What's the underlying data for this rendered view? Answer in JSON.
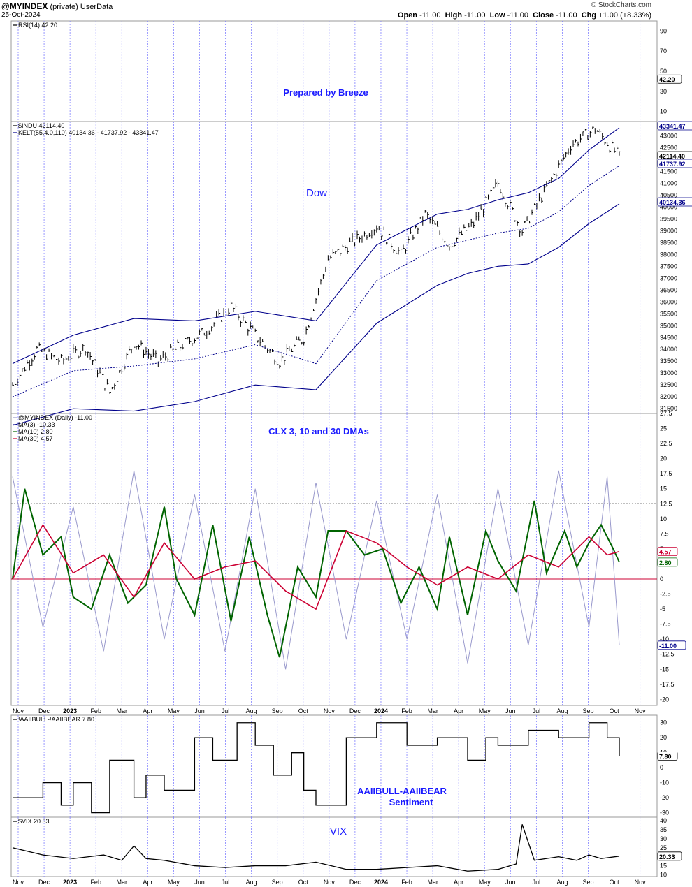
{
  "header": {
    "symbol": "@MYINDEX",
    "owner": "(private)",
    "source": "UserData",
    "date": "25-Oct-2024",
    "open_label": "Open",
    "open": "-11.00",
    "high_label": "High",
    "high": "-11.00",
    "low_label": "Low",
    "low": "-11.00",
    "close_label": "Close",
    "close": "-11.00",
    "chg_label": "Chg",
    "chg": "+1.00 (+8.33%)",
    "watermark": "© StockCharts.com"
  },
  "x_axis": {
    "months": [
      "Nov",
      "Dec",
      "2023",
      "Feb",
      "Mar",
      "Apr",
      "May",
      "Jun",
      "Jul",
      "Aug",
      "Sep",
      "Oct",
      "Nov",
      "Dec",
      "2024",
      "Feb",
      "Mar",
      "Apr",
      "May",
      "Jun",
      "Jul",
      "Aug",
      "Sep",
      "Oct",
      "Nov",
      "Dec"
    ],
    "bold_months": [
      "2023",
      "2024"
    ]
  },
  "chart_data": [
    {
      "type": "line",
      "panel": "rsi",
      "legend": [
        "RSI(14) 42.20"
      ],
      "y_ticks": [
        10,
        30,
        42.2,
        50,
        70,
        90
      ],
      "last_value_label": "42.20",
      "annotation": "Prepared by Breeze"
    },
    {
      "type": "ohlc",
      "panel": "dow",
      "legend": [
        "$INDU 42114.40",
        "KELT(55,4.0,110) 40134.36 - 41737.92 - 43341.47"
      ],
      "ylim": [
        31300,
        43600
      ],
      "y_ticks": [
        31500,
        32000,
        32500,
        33000,
        33500,
        34000,
        34500,
        35000,
        35500,
        36000,
        36500,
        37000,
        37500,
        38000,
        38500,
        39000,
        39500,
        40000,
        40500,
        41000,
        41500,
        42000,
        42500,
        43000
      ],
      "last_labels": [
        "43341.47",
        "42114.40",
        "41737.92",
        "40134.36"
      ],
      "annotation": "Dow",
      "series": [
        {
          "name": "$INDU",
          "x": [
            0,
            0.04,
            0.08,
            0.12,
            0.16,
            0.2,
            0.24,
            0.28,
            0.32,
            0.36,
            0.4,
            0.44,
            0.48,
            0.52,
            0.56,
            0.6,
            0.64,
            0.68,
            0.72,
            0.76,
            0.8,
            0.84,
            0.88,
            0.92,
            0.96,
            1.0
          ],
          "values": [
            32500,
            34000,
            33500,
            34100,
            32200,
            34300,
            33500,
            34200,
            34800,
            35800,
            34600,
            33500,
            34500,
            37800,
            38500,
            39200,
            38000,
            39700,
            38400,
            39300,
            41000,
            39000,
            40800,
            42600,
            43300,
            42114
          ]
        },
        {
          "name": "KELT upper",
          "x": [
            0,
            0.1,
            0.2,
            0.3,
            0.4,
            0.5,
            0.6,
            0.7,
            0.75,
            0.8,
            0.85,
            0.9,
            0.95,
            1.0
          ],
          "values": [
            33400,
            34600,
            35300,
            35200,
            35600,
            35200,
            38400,
            39700,
            39900,
            40300,
            40600,
            41200,
            42400,
            43341
          ]
        },
        {
          "name": "KELT middle",
          "x": [
            0,
            0.1,
            0.2,
            0.3,
            0.4,
            0.5,
            0.6,
            0.7,
            0.75,
            0.8,
            0.85,
            0.9,
            0.95,
            1.0
          ],
          "values": [
            32000,
            33100,
            33300,
            33600,
            34200,
            33400,
            36900,
            38300,
            38600,
            38900,
            39100,
            39800,
            40900,
            41738
          ]
        },
        {
          "name": "KELT lower",
          "x": [
            0,
            0.1,
            0.2,
            0.3,
            0.4,
            0.5,
            0.6,
            0.7,
            0.75,
            0.8,
            0.85,
            0.9,
            0.95,
            1.0
          ],
          "values": [
            30800,
            31500,
            31400,
            31800,
            32500,
            32300,
            35100,
            36700,
            37200,
            37500,
            37600,
            38300,
            39300,
            40134
          ]
        }
      ]
    },
    {
      "type": "line",
      "panel": "clx",
      "legend": [
        "@MYINDEX (Daily) -11.00",
        "MA(3) -10.33",
        "MA(10) 2.80",
        "MA(30) 4.57"
      ],
      "ylim": [
        -21,
        27.5
      ],
      "y_ticks": [
        -20,
        -17.5,
        -15,
        -12.5,
        -10,
        -7.5,
        -5,
        -2.5,
        0,
        2.5,
        5,
        7.5,
        10,
        12.5,
        15,
        17.5,
        20,
        22.5,
        25,
        27.5
      ],
      "reference_lines": [
        12.5,
        0
      ],
      "last_labels": [
        "4.57",
        "2.80",
        "-11.00"
      ],
      "annotation": "CLX 3, 10 and 30 DMAs",
      "series": [
        {
          "name": "MA(10)",
          "x": [
            0,
            0.02,
            0.05,
            0.08,
            0.1,
            0.13,
            0.16,
            0.19,
            0.22,
            0.25,
            0.27,
            0.3,
            0.33,
            0.36,
            0.39,
            0.42,
            0.44,
            0.47,
            0.5,
            0.52,
            0.55,
            0.58,
            0.61,
            0.64,
            0.67,
            0.7,
            0.72,
            0.75,
            0.78,
            0.8,
            0.83,
            0.86,
            0.88,
            0.91,
            0.93,
            0.95,
            0.97,
            0.99,
            1.0
          ],
          "values": [
            0,
            15,
            4,
            7,
            -3,
            -5,
            4,
            -4,
            -1,
            12,
            0,
            -6,
            9,
            -7,
            7,
            -6,
            -13,
            2,
            -3,
            8,
            8,
            4,
            5,
            -4,
            2,
            -5,
            7,
            -6,
            8,
            3,
            -2,
            13,
            1,
            8,
            2,
            6,
            9,
            5,
            2.8
          ]
        },
        {
          "name": "MA(30)",
          "x": [
            0,
            0.05,
            0.1,
            0.15,
            0.2,
            0.25,
            0.3,
            0.35,
            0.4,
            0.45,
            0.5,
            0.55,
            0.6,
            0.65,
            0.7,
            0.75,
            0.8,
            0.85,
            0.9,
            0.95,
            0.98,
            1.0
          ],
          "values": [
            0,
            9,
            1,
            4,
            -3,
            6,
            0,
            2,
            3,
            -2,
            -5,
            8,
            6,
            2,
            -1,
            2,
            0,
            4,
            2,
            7,
            4,
            4.57
          ]
        },
        {
          "name": "@MYINDEX",
          "x": [
            0,
            0.05,
            0.1,
            0.15,
            0.2,
            0.25,
            0.3,
            0.35,
            0.4,
            0.45,
            0.5,
            0.55,
            0.6,
            0.65,
            0.7,
            0.75,
            0.8,
            0.85,
            0.9,
            0.95,
            0.98,
            1.0
          ],
          "values": [
            17,
            -8,
            12,
            -12,
            18,
            -10,
            14,
            -12,
            15,
            -15,
            16,
            -10,
            13,
            -10,
            14,
            -14,
            15,
            -11,
            18,
            -8,
            17,
            -11
          ]
        }
      ]
    },
    {
      "type": "line",
      "panel": "aaii",
      "legend": [
        "!AAIIBULL-!AAIIBEAR 7.80"
      ],
      "ylim": [
        -33,
        35
      ],
      "y_ticks": [
        -30,
        -20,
        -10,
        0,
        10,
        20,
        30
      ],
      "last_value_label": "7.80",
      "annotation": [
        "AAIIBULL-AAIIBEAR",
        "Sentiment"
      ],
      "series": [
        {
          "name": "!AAIIBULL-!AAIIBEAR",
          "x": [
            0,
            0.05,
            0.08,
            0.1,
            0.13,
            0.16,
            0.2,
            0.22,
            0.25,
            0.3,
            0.33,
            0.37,
            0.4,
            0.43,
            0.46,
            0.48,
            0.5,
            0.55,
            0.6,
            0.65,
            0.7,
            0.75,
            0.78,
            0.8,
            0.85,
            0.9,
            0.95,
            0.98,
            1.0
          ],
          "values": [
            -20,
            -10,
            -25,
            -10,
            -30,
            5,
            -20,
            -5,
            -15,
            20,
            5,
            30,
            15,
            -5,
            10,
            -15,
            -25,
            20,
            30,
            15,
            20,
            5,
            20,
            15,
            25,
            20,
            30,
            20,
            7.8
          ]
        }
      ]
    },
    {
      "type": "line",
      "panel": "vix",
      "legend": [
        "$VIX 20.33"
      ],
      "ylim": [
        9,
        42
      ],
      "y_ticks": [
        10,
        15,
        20,
        25,
        30,
        35,
        40
      ],
      "last_value_label": "20.33",
      "annotation": "VIX",
      "series": [
        {
          "name": "$VIX",
          "x": [
            0,
            0.05,
            0.1,
            0.15,
            0.18,
            0.2,
            0.22,
            0.25,
            0.3,
            0.35,
            0.4,
            0.45,
            0.5,
            0.55,
            0.6,
            0.65,
            0.7,
            0.75,
            0.8,
            0.83,
            0.84,
            0.86,
            0.9,
            0.93,
            0.95,
            0.97,
            1.0
          ],
          "values": [
            25,
            21,
            19,
            21,
            18,
            26,
            19,
            18,
            15,
            14,
            15,
            15,
            17,
            13,
            13,
            14,
            15,
            12,
            13,
            16,
            38,
            18,
            20,
            18,
            21,
            19,
            20.33
          ]
        }
      ]
    }
  ],
  "annotations": {
    "rsi_note": "Prepared by Breeze",
    "dow_note": "Dow",
    "clx_note": "CLX 3, 10 and 30 DMAs",
    "aaii_note_1": "AAIIBULL-AAIIBEAR",
    "aaii_note_2": "Sentiment",
    "vix_note": "VIX"
  },
  "colors": {
    "price": "#000000",
    "kelt": "#00008b",
    "ma3": "#9999cc",
    "ma10": "#006400",
    "ma30": "#cc0033",
    "annotation": "#1a1aff",
    "grid": "#8080ff"
  }
}
